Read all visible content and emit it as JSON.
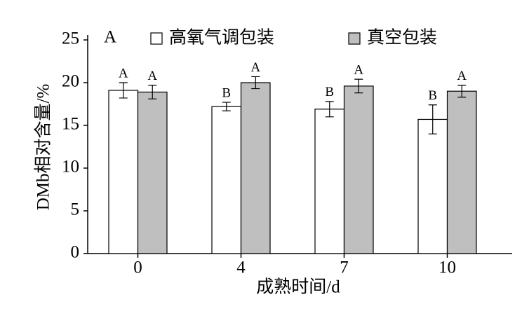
{
  "chart_data": {
    "type": "bar",
    "panel_label": "A",
    "x_label": "成熟时间/d",
    "y_label": "DMb相对含量/%",
    "categories": [
      "0",
      "4",
      "7",
      "10"
    ],
    "series": [
      {
        "name": "高氧气调包装",
        "color": "#ffffff",
        "values": [
          19.1,
          17.2,
          16.9,
          15.7
        ],
        "errors": [
          0.9,
          0.5,
          0.9,
          1.7
        ],
        "significance": [
          "A",
          "B",
          "B",
          "B"
        ]
      },
      {
        "name": "真空包装",
        "color": "#bfbfbf",
        "values": [
          18.9,
          20.0,
          19.6,
          19.0
        ],
        "errors": [
          0.8,
          0.7,
          0.8,
          0.7
        ],
        "significance": [
          "A",
          "A",
          "A",
          "A"
        ]
      }
    ],
    "ylim": [
      0,
      25
    ],
    "yticks": [
      0,
      5,
      10,
      15,
      20,
      25
    ],
    "grid": false
  }
}
